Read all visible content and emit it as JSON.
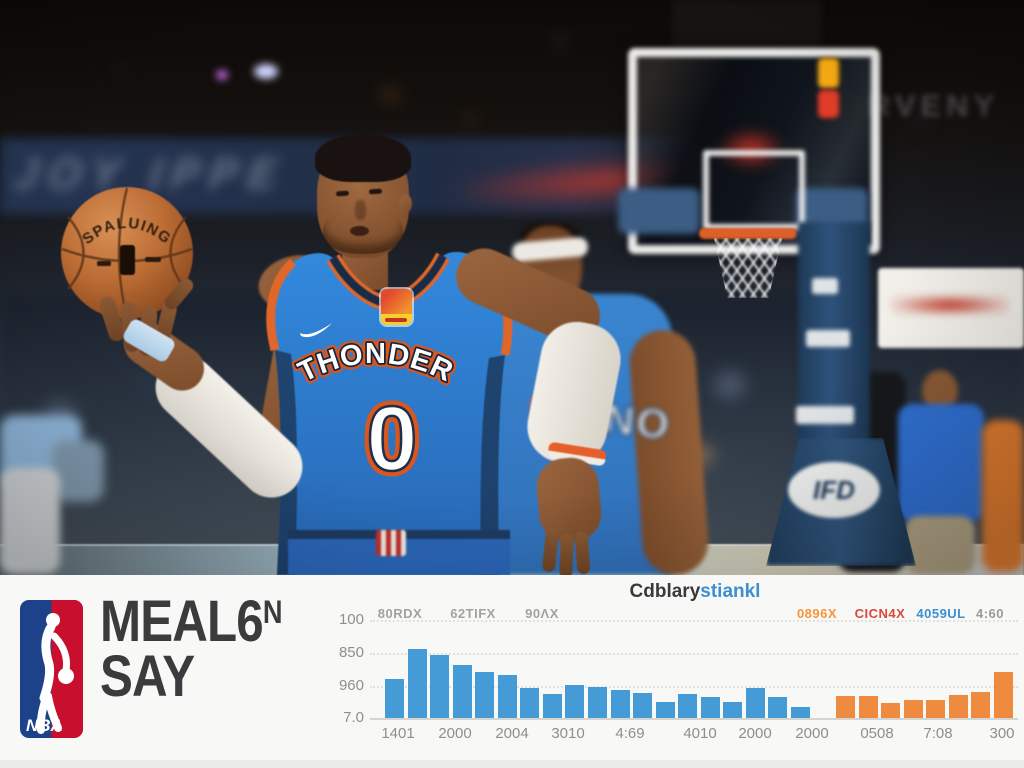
{
  "photo": {
    "jersey_wordmark": "THONDER",
    "jersey_number": "0",
    "ball_brand": "SPALUING",
    "stanchion_logo": "IFD",
    "banner_text_left": "JOY IPPE",
    "sign_text_right": "RVENY",
    "player2_jersey_letters": "NO",
    "jersey_blue": "#2e7fd6",
    "ball_orange": "#c06a33"
  },
  "panel": {
    "nba_logo_text": "NBA",
    "nba_blue": "#1d428a",
    "nba_red": "#c8102e",
    "wordmark_line1": "MEAL6",
    "wordmark_line1_sup": "N",
    "wordmark_line2": "SAY"
  },
  "chart_data": {
    "type": "bar",
    "title_dark": "Cdblary",
    "title_blue": "stiankl",
    "top_labels_gray": [
      "80RDX",
      "62TIFX",
      "90ΛX"
    ],
    "top_labels_colored": [
      {
        "text": "0896X",
        "color": "#f5953b"
      },
      {
        "text": "CICN4X",
        "color": "#d84a3a"
      },
      {
        "text": "4059UL",
        "color": "#3d8fd1"
      },
      {
        "text": "4:60",
        "color": "#9a9a9a"
      }
    ],
    "y_ticks": [
      "100",
      "850",
      "960",
      "7.0"
    ],
    "x_ticks": [
      "1401",
      "2000",
      "2004",
      "3010",
      "4:69",
      "4010",
      "2000",
      "2000",
      "0508",
      "7:08",
      "300"
    ],
    "series": [
      {
        "name": "blue-series",
        "color": "#449bd5",
        "values": [
          40,
          71,
          65,
          55,
          47,
          44,
          31,
          25,
          34,
          32,
          29,
          26,
          17,
          25,
          22,
          17,
          31,
          22,
          11
        ]
      },
      {
        "name": "orange-series",
        "color": "#ef8b3e",
        "values": [
          23,
          23,
          15,
          19,
          19,
          24,
          27,
          47
        ]
      }
    ],
    "gap_slots": 1,
    "ylim": [
      0,
      100
    ],
    "grid": true,
    "legend_position": "top-right"
  }
}
